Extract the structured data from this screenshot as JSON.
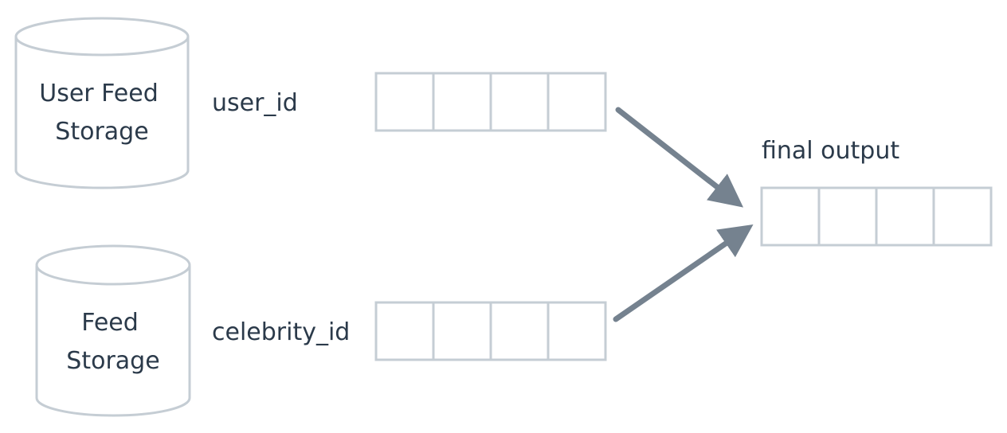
{
  "storages": {
    "user_feed": {
      "line1": "User Feed",
      "line2": "Storage"
    },
    "feed": {
      "line1": "Feed",
      "line2": "Storage"
    }
  },
  "labels": {
    "user_id": "user_id",
    "celebrity_id": "celebrity_id",
    "final_output": "final output"
  },
  "colors": {
    "outline": "#c5cdd4",
    "arrow": "#75828f",
    "text": "#2b3a4a"
  }
}
